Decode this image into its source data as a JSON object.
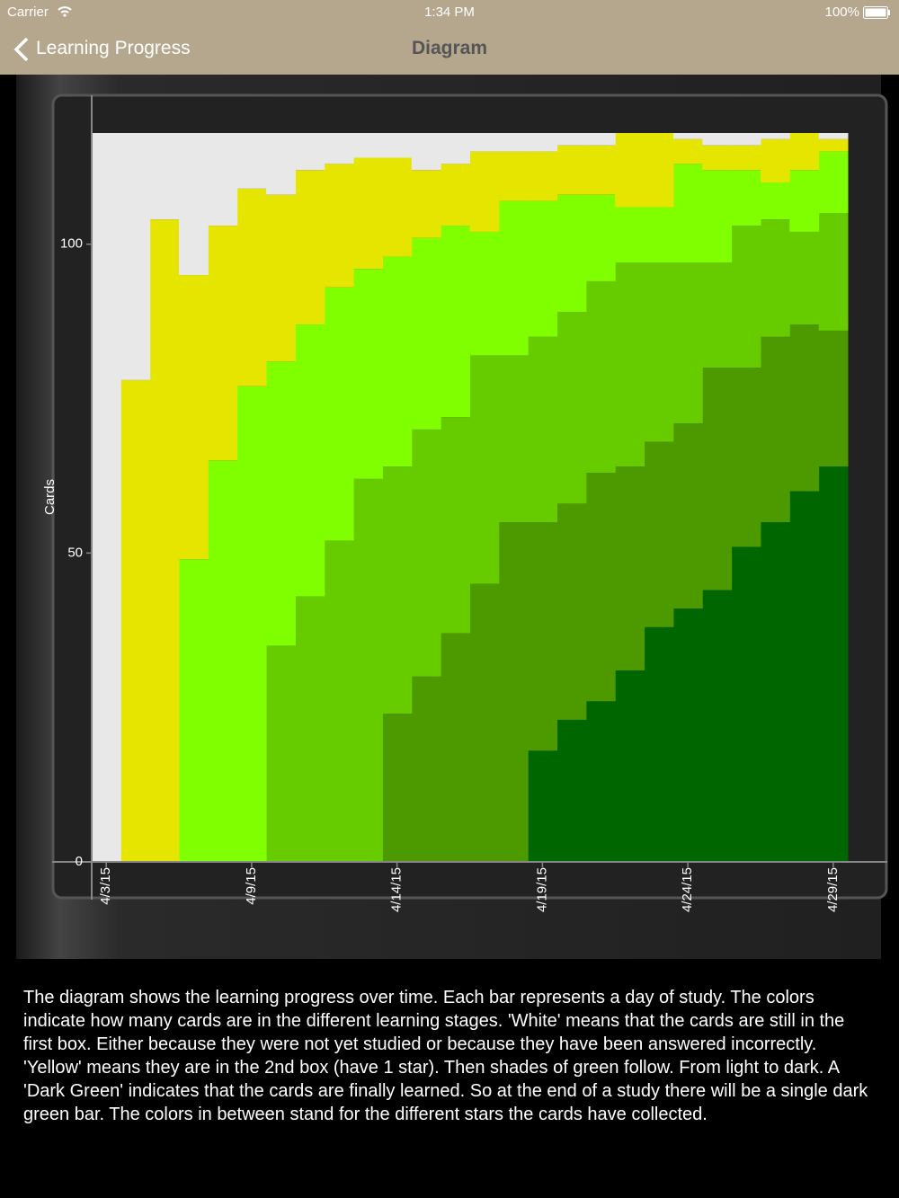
{
  "status_bar": {
    "carrier": "Carrier",
    "time": "1:34 PM",
    "battery": "100%"
  },
  "nav_bar": {
    "back": "Learning Progress",
    "title": "Diagram"
  },
  "chart_data": {
    "type": "bar",
    "stacked": true,
    "y_label": "Cards",
    "categories": [
      "4/3/15",
      null,
      null,
      null,
      null,
      "4/9/15",
      null,
      null,
      null,
      null,
      "4/14/15",
      null,
      null,
      null,
      null,
      "4/19/15",
      null,
      null,
      null,
      null,
      "4/24/15",
      null,
      null,
      null,
      null,
      "4/29/15"
    ],
    "series": [
      {
        "color": "#006600",
        "values": [
          0,
          0,
          0,
          0,
          0,
          0,
          0,
          0,
          0,
          0,
          0,
          0,
          0,
          0,
          0,
          18,
          23,
          26,
          31,
          38,
          41,
          44,
          51,
          55,
          60,
          64
        ]
      },
      {
        "color": "#4c9900",
        "values": [
          0,
          0,
          0,
          0,
          0,
          0,
          0,
          0,
          0,
          0,
          24,
          30,
          37,
          45,
          55,
          37,
          35,
          37,
          33,
          30,
          30,
          36,
          29,
          30,
          27,
          22
        ]
      },
      {
        "color": "#66cc00",
        "values": [
          0,
          0,
          0,
          0,
          0,
          0,
          35,
          43,
          52,
          62,
          40,
          40,
          35,
          37,
          27,
          30,
          31,
          31,
          33,
          29,
          26,
          17,
          23,
          19,
          15,
          19
        ]
      },
      {
        "color": "#80ff00",
        "values": [
          0,
          0,
          0,
          49,
          65,
          77,
          46,
          44,
          41,
          34,
          34,
          31,
          31,
          20,
          25,
          22,
          19,
          14,
          9,
          9,
          16,
          15,
          9,
          6,
          10,
          10
        ]
      },
      {
        "color": "#e5e500",
        "values": [
          0,
          78,
          104,
          46,
          38,
          32,
          27,
          25,
          20,
          18,
          16,
          11,
          10,
          13,
          8,
          8,
          8,
          8,
          12,
          12,
          4,
          4,
          4,
          7,
          6,
          2
        ]
      },
      {
        "color": "#e8e8e8",
        "values": [
          118,
          40,
          14,
          23,
          15,
          9,
          10,
          6,
          5,
          4,
          4,
          6,
          5,
          3,
          3,
          3,
          2,
          2,
          0,
          0,
          1,
          2,
          2,
          1,
          0,
          1
        ]
      }
    ],
    "ylim": [
      0,
      118
    ],
    "yticks": [
      0,
      50,
      100
    ]
  },
  "description": "The diagram shows the learning progress over time. Each bar represents a day of study. The colors indicate how many cards are in the different learning stages. 'White' means that the cards are still in the first box. Either because they were not yet studied or because they have been answered incorrectly. 'Yellow' means they are in the 2nd box (have 1 star). Then shades of green follow. From light to dark. A 'Dark Green' indicates that the cards are finally learned. So at the end of a study there will be a single dark green bar. The colors in between stand for the different stars the cards have collected."
}
